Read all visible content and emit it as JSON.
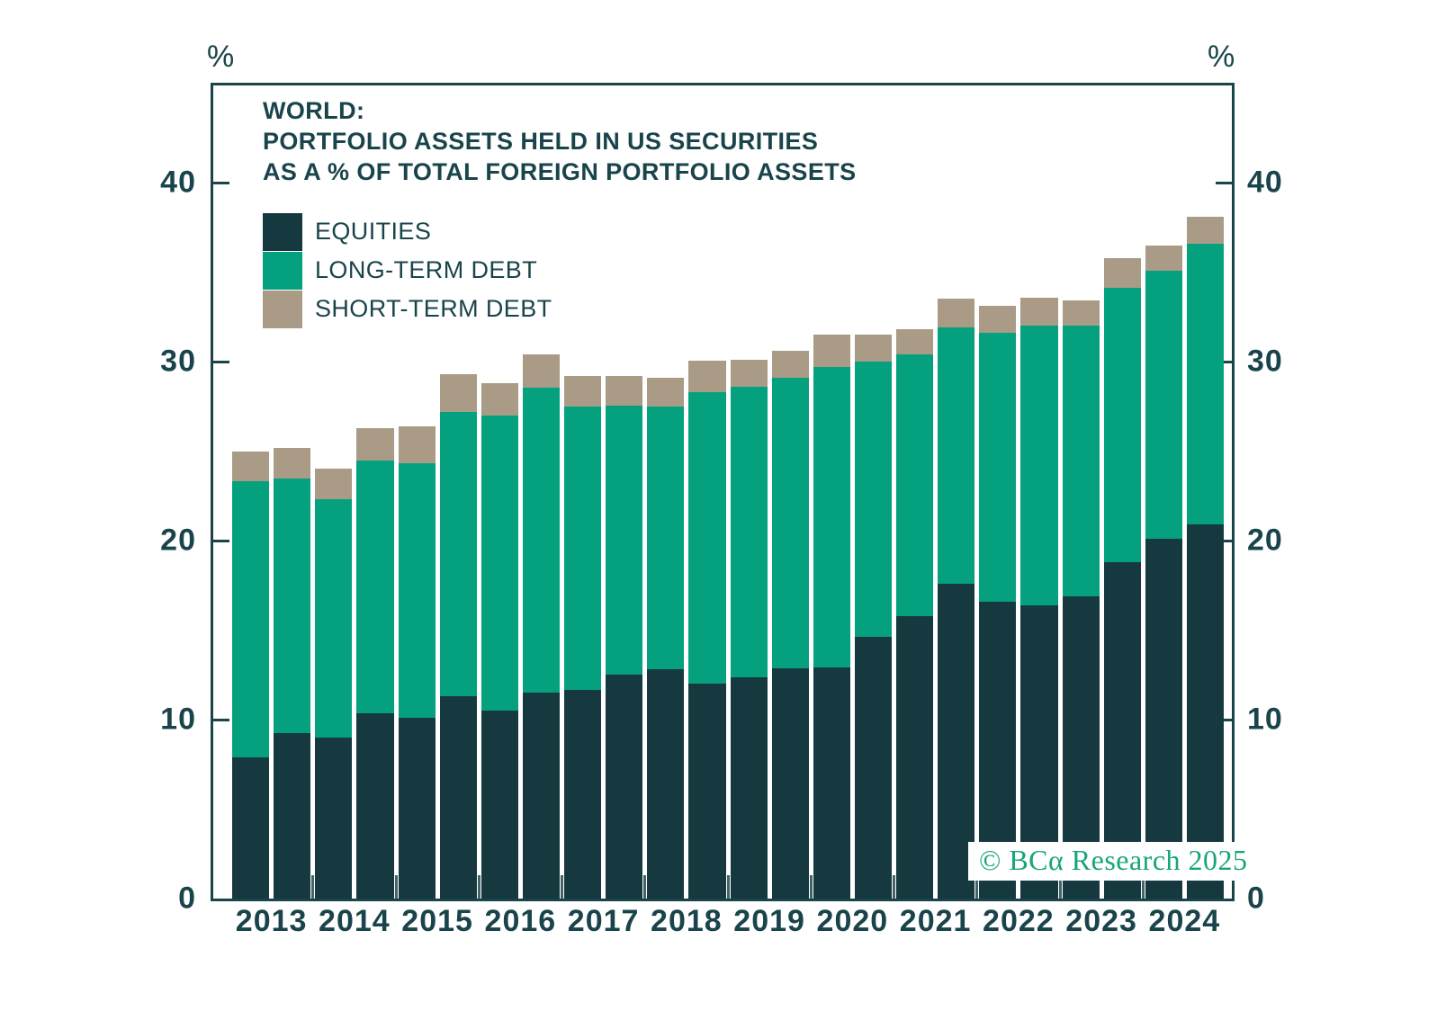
{
  "chart": {
    "title_lines": [
      "WORLD:",
      "PORTFOLIO ASSETS HELD IN US SECURITIES",
      "AS A % OF TOTAL FOREIGN PORTFOLIO ASSETS"
    ],
    "unit_label_left": "%",
    "unit_label_right": "%",
    "watermark": "© BCα Research 2025",
    "colors": {
      "equities": "#163940",
      "long_term_debt": "#05a17f",
      "short_term_debt": "#a99b85",
      "text": "#1a444b",
      "watermark_green": "#17a57b",
      "background": "#ffffff"
    },
    "legend": [
      {
        "label": "EQUITIES",
        "color_key": "equities"
      },
      {
        "label": "LONG-TERM DEBT",
        "color_key": "long_term_debt"
      },
      {
        "label": "SHORT-TERM DEBT",
        "color_key": "short_term_debt"
      }
    ]
  },
  "chart_data": {
    "type": "bar",
    "stacked": true,
    "grid": false,
    "legend_position": "top-left",
    "title": "WORLD: PORTFOLIO ASSETS HELD IN US SECURITIES AS A % OF TOTAL FOREIGN PORTFOLIO ASSETS",
    "ylabel": "%",
    "ylim": [
      0,
      45.6
    ],
    "y_ticks": [
      0,
      10,
      20,
      30,
      40
    ],
    "year_labels": [
      "2013",
      "2014",
      "2015",
      "2016",
      "2017",
      "2018",
      "2019",
      "2020",
      "2021",
      "2022",
      "2023",
      "2024"
    ],
    "bars_per_year": 2,
    "categories": [
      "2013-H1",
      "2013-H2",
      "2014-H1",
      "2014-H2",
      "2015-H1",
      "2015-H2",
      "2016-H1",
      "2016-H2",
      "2017-H1",
      "2017-H2",
      "2018-H1",
      "2018-H2",
      "2019-H1",
      "2019-H2",
      "2020-H1",
      "2020-H2",
      "2021-H1",
      "2021-H2",
      "2022-H1",
      "2022-H2",
      "2023-H1",
      "2023-H2",
      "2024-H1",
      "2024-H2"
    ],
    "series": [
      {
        "name": "EQUITIES",
        "color_key": "equities",
        "values": [
          7.9,
          9.25,
          9.0,
          10.35,
          10.1,
          11.3,
          10.5,
          11.5,
          11.65,
          12.5,
          12.8,
          12.0,
          12.35,
          12.85,
          12.9,
          14.6,
          15.8,
          17.6,
          16.6,
          16.4,
          16.9,
          18.8,
          20.1,
          20.9
        ]
      },
      {
        "name": "LONG-TERM DEBT",
        "color_key": "long_term_debt",
        "values": [
          15.4,
          14.2,
          13.3,
          14.1,
          14.2,
          15.9,
          16.5,
          17.05,
          15.85,
          15.05,
          14.7,
          16.3,
          16.25,
          16.25,
          16.8,
          15.4,
          14.6,
          14.3,
          15.0,
          15.6,
          15.1,
          15.3,
          14.95,
          15.7
        ]
      },
      {
        "name": "SHORT-TERM DEBT",
        "color_key": "short_term_debt",
        "values": [
          1.7,
          1.75,
          1.7,
          1.85,
          2.1,
          2.1,
          1.8,
          1.85,
          1.7,
          1.65,
          1.6,
          1.75,
          1.5,
          1.5,
          1.8,
          1.5,
          1.4,
          1.6,
          1.5,
          1.55,
          1.4,
          1.7,
          1.45,
          1.5
        ]
      }
    ],
    "stacked_totals": [
      25.0,
      25.2,
      24.0,
      26.3,
      26.4,
      29.3,
      28.8,
      30.4,
      29.2,
      29.2,
      29.1,
      30.05,
      30.1,
      30.6,
      31.5,
      31.5,
      31.8,
      33.5,
      33.1,
      33.55,
      33.4,
      35.8,
      36.5,
      38.1
    ]
  }
}
